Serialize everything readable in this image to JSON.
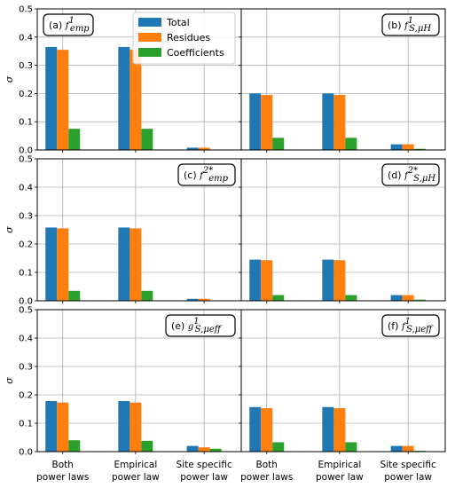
{
  "colors": {
    "total": "#1f77b4",
    "residues": "#ff7f0e",
    "coefficients": "#2ca02c",
    "grid": "#b0b0b0"
  },
  "legend": {
    "entries": [
      "Total",
      "Residues",
      "Coefficients"
    ],
    "placement": "top-center of panel (a)"
  },
  "chart_data": {
    "type": "bar",
    "ylabel": "σ",
    "ylim": [
      0,
      0.5
    ],
    "yticks": [
      "0.0",
      "0.1",
      "0.2",
      "0.3",
      "0.4",
      "0.5"
    ],
    "grid": true,
    "categories": [
      [
        "Both",
        "power laws"
      ],
      [
        "Empirical",
        "power law"
      ],
      [
        "Site specific",
        "power law"
      ]
    ],
    "series_names": [
      "Total",
      "Residues",
      "Coefficients"
    ],
    "panels": [
      {
        "tag": "(a)",
        "func": "f",
        "sub": "emp",
        "sup": "1",
        "series": [
          {
            "name": "Total",
            "values": [
              0.365,
              0.365,
              0.008
            ]
          },
          {
            "name": "Residues",
            "values": [
              0.355,
              0.355,
              0.008
            ]
          },
          {
            "name": "Coefficients",
            "values": [
              0.075,
              0.075,
              0.0
            ]
          }
        ]
      },
      {
        "tag": "(b)",
        "func": "f",
        "sub": "S,μH",
        "sup": "1",
        "series": [
          {
            "name": "Total",
            "values": [
              0.2,
              0.2,
              0.02
            ]
          },
          {
            "name": "Residues",
            "values": [
              0.195,
              0.195,
              0.02
            ]
          },
          {
            "name": "Coefficients",
            "values": [
              0.043,
              0.043,
              0.004
            ]
          }
        ]
      },
      {
        "tag": "(c)",
        "func": "f",
        "sub": "emp",
        "sup": "2*",
        "series": [
          {
            "name": "Total",
            "values": [
              0.258,
              0.258,
              0.007
            ]
          },
          {
            "name": "Residues",
            "values": [
              0.255,
              0.255,
              0.007
            ]
          },
          {
            "name": "Coefficients",
            "values": [
              0.035,
              0.035,
              0.0
            ]
          }
        ]
      },
      {
        "tag": "(d)",
        "func": "f",
        "sub": "S,μH",
        "sup": "2*",
        "series": [
          {
            "name": "Total",
            "values": [
              0.145,
              0.145,
              0.02
            ]
          },
          {
            "name": "Residues",
            "values": [
              0.143,
              0.143,
              0.02
            ]
          },
          {
            "name": "Coefficients",
            "values": [
              0.02,
              0.02,
              0.004
            ]
          }
        ]
      },
      {
        "tag": "(e)",
        "func": "g",
        "sub": "S,μeff",
        "sup": "1",
        "series": [
          {
            "name": "Total",
            "values": [
              0.178,
              0.178,
              0.02
            ]
          },
          {
            "name": "Residues",
            "values": [
              0.173,
              0.173,
              0.015
            ]
          },
          {
            "name": "Coefficients",
            "values": [
              0.04,
              0.038,
              0.01
            ]
          }
        ]
      },
      {
        "tag": "(f)",
        "func": "f",
        "sub": "S,μeff",
        "sup": "1",
        "series": [
          {
            "name": "Total",
            "values": [
              0.157,
              0.157,
              0.02
            ]
          },
          {
            "name": "Residues",
            "values": [
              0.153,
              0.153,
              0.02
            ]
          },
          {
            "name": "Coefficients",
            "values": [
              0.033,
              0.033,
              0.003
            ]
          }
        ]
      }
    ]
  }
}
